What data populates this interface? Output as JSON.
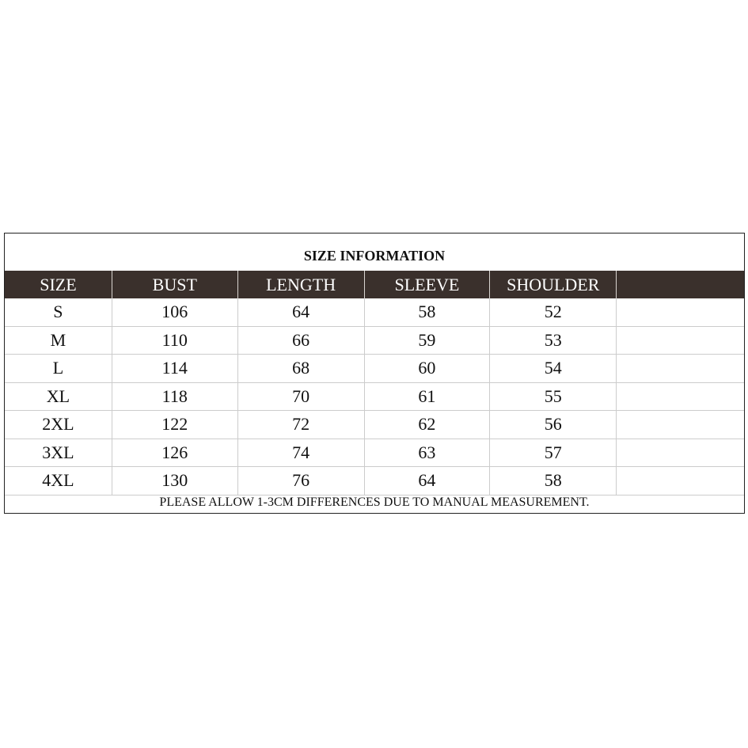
{
  "title": "SIZE INFORMATION",
  "headers": [
    "SIZE",
    "BUST",
    "LENGTH",
    "SLEEVE",
    "SHOULDER",
    ""
  ],
  "rows": [
    [
      "S",
      "106",
      "64",
      "58",
      "52",
      ""
    ],
    [
      "M",
      "110",
      "66",
      "59",
      "53",
      ""
    ],
    [
      "L",
      "114",
      "68",
      "60",
      "54",
      ""
    ],
    [
      "XL",
      "118",
      "70",
      "61",
      "55",
      ""
    ],
    [
      "2XL",
      "122",
      "72",
      "62",
      "56",
      ""
    ],
    [
      "3XL",
      "126",
      "74",
      "63",
      "57",
      ""
    ],
    [
      "4XL",
      "130",
      "76",
      "64",
      "58",
      ""
    ]
  ],
  "footer": "PLEASE ALLOW 1-3CM DIFFERENCES DUE TO MANUAL MEASUREMENT.",
  "colors": {
    "header_bg": "#3a302c",
    "header_text": "#ffffff"
  }
}
